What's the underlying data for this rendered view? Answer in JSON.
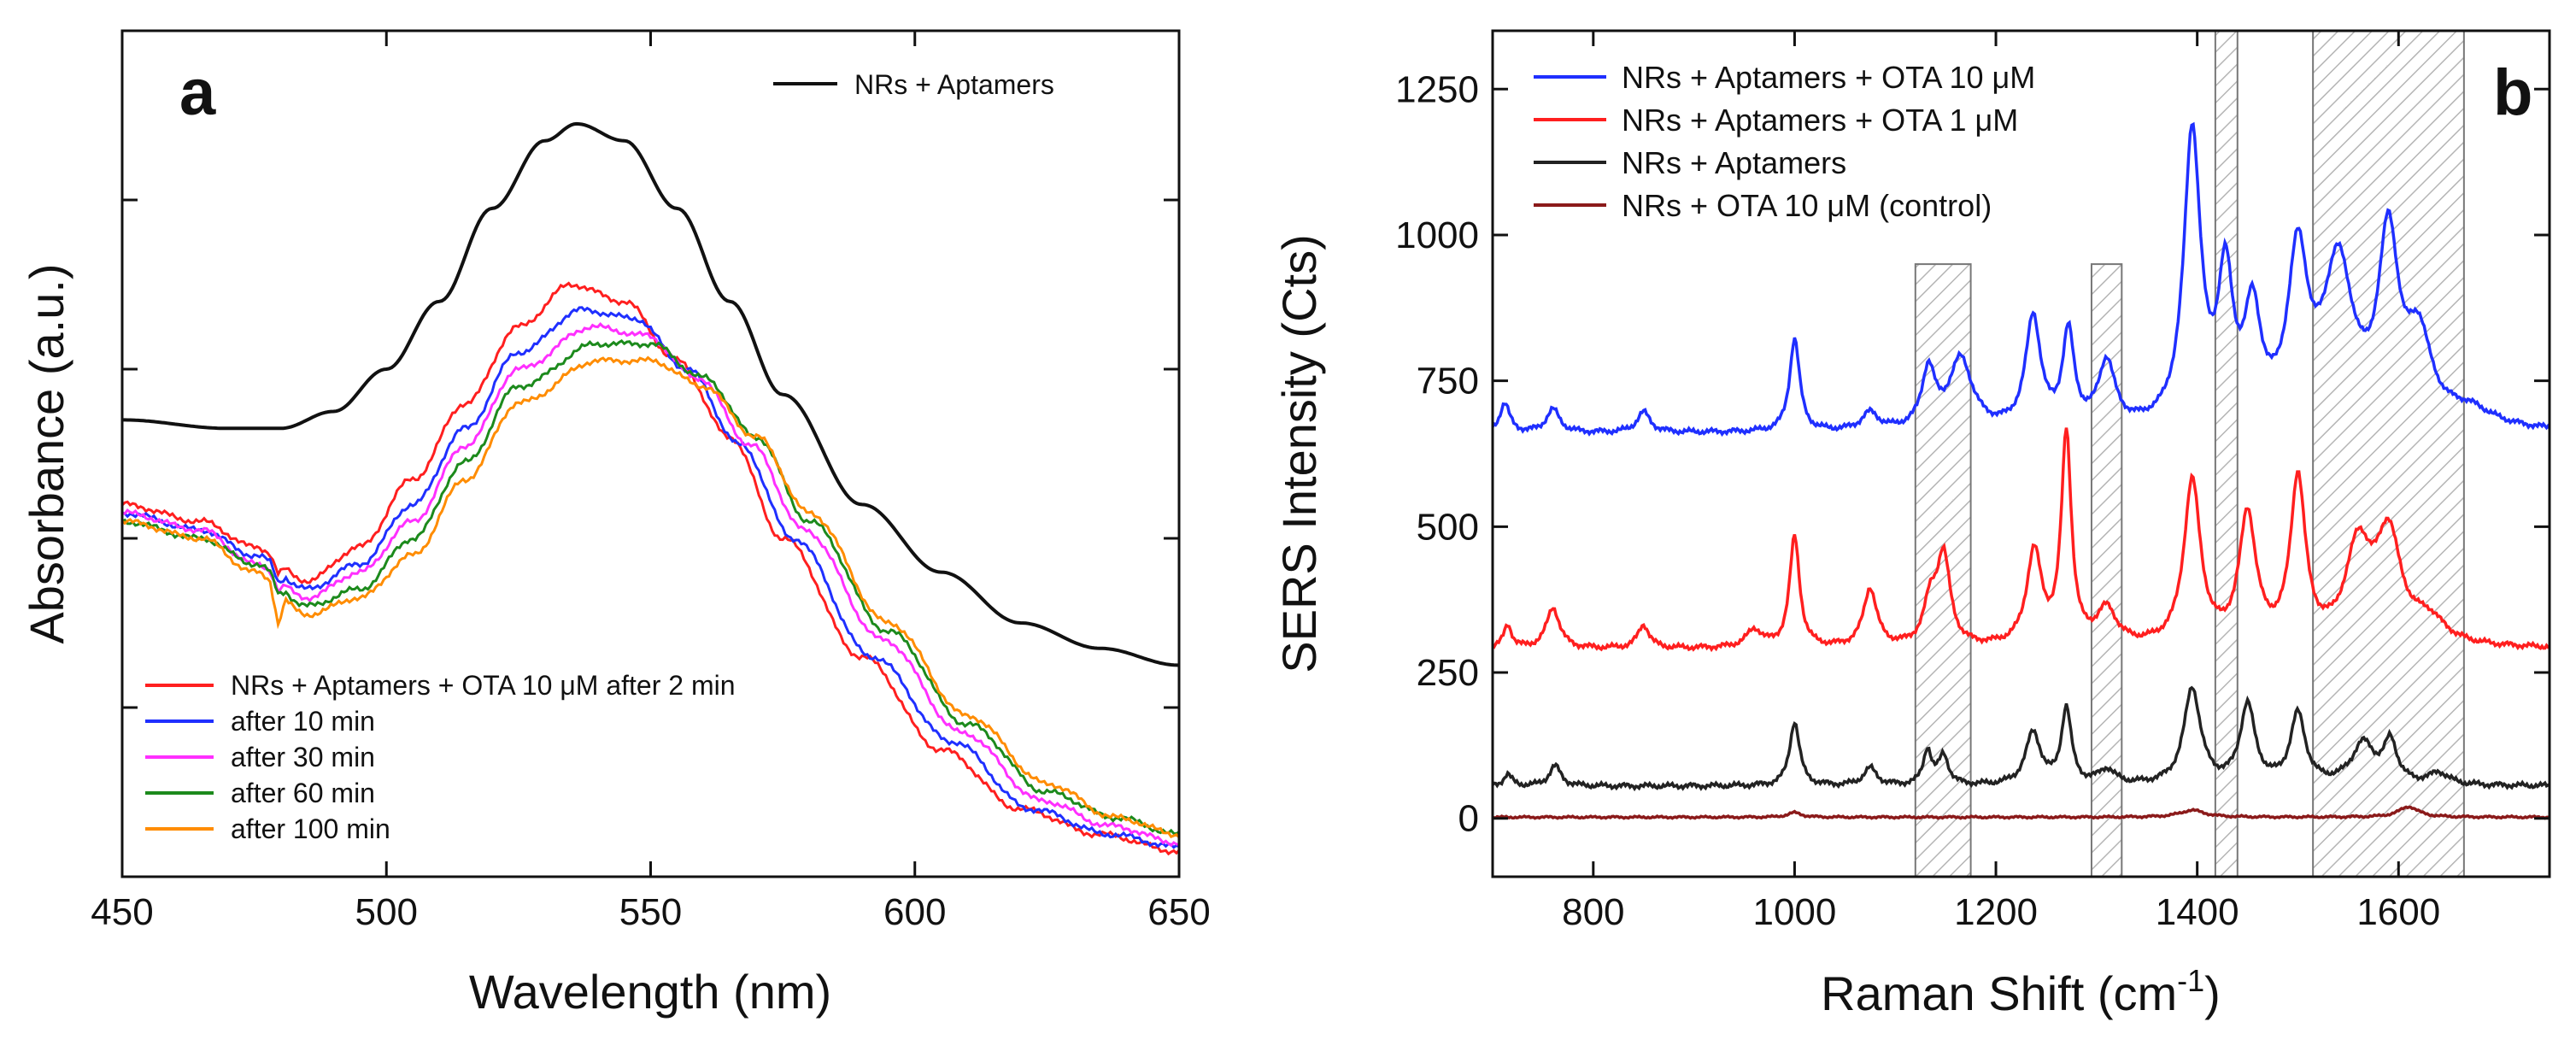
{
  "chart_data": [
    {
      "type": "line",
      "panel_label": "a",
      "xlabel": "Wavelength (nm)",
      "ylabel": "Absorbance (a.u.)",
      "xlim": [
        450,
        650
      ],
      "ylim": [
        0,
        1.0
      ],
      "x_ticks": [
        450,
        500,
        550,
        600,
        650
      ],
      "y_tick_labels_shown": false,
      "top_legend": "NRs + Aptamers",
      "legend_position": "bottom-left",
      "series": [
        {
          "name": "NRs + Aptamers",
          "color": "#111111",
          "x": [
            450,
            470,
            480,
            490,
            500,
            510,
            520,
            530,
            536,
            545,
            555,
            565,
            575,
            590,
            605,
            620,
            635,
            650
          ],
          "y": [
            0.54,
            0.53,
            0.53,
            0.55,
            0.6,
            0.68,
            0.79,
            0.87,
            0.89,
            0.87,
            0.79,
            0.68,
            0.57,
            0.44,
            0.36,
            0.3,
            0.27,
            0.25
          ]
        },
        {
          "name": "NRs + Aptamers + OTA 10 μM  after 2 min",
          "color": "#ff1f1f",
          "x": [
            450,
            465,
            475,
            485,
            495,
            505,
            515,
            525,
            535,
            545,
            555,
            565,
            575,
            590,
            605,
            620,
            635,
            650
          ],
          "y": [
            0.44,
            0.42,
            0.39,
            0.35,
            0.39,
            0.47,
            0.56,
            0.65,
            0.7,
            0.68,
            0.61,
            0.52,
            0.4,
            0.26,
            0.15,
            0.08,
            0.05,
            0.03
          ]
        },
        {
          "name": "after 10 min",
          "color": "#1f2fff",
          "x": [
            450,
            465,
            475,
            485,
            495,
            505,
            515,
            525,
            537,
            547,
            557,
            567,
            577,
            592,
            607,
            622,
            637,
            650
          ],
          "y": [
            0.43,
            0.41,
            0.38,
            0.34,
            0.37,
            0.44,
            0.53,
            0.62,
            0.67,
            0.66,
            0.6,
            0.51,
            0.4,
            0.26,
            0.16,
            0.08,
            0.05,
            0.035
          ]
        },
        {
          "name": "after 30 min",
          "color": "#ff2fff",
          "x": [
            450,
            465,
            475,
            485,
            495,
            505,
            515,
            525,
            539,
            549,
            559,
            569,
            579,
            594,
            609,
            624,
            637,
            650
          ],
          "y": [
            0.43,
            0.41,
            0.37,
            0.33,
            0.36,
            0.42,
            0.51,
            0.6,
            0.65,
            0.64,
            0.59,
            0.51,
            0.41,
            0.28,
            0.17,
            0.09,
            0.06,
            0.04
          ]
        },
        {
          "name": "after 60 min",
          "color": "#1c8a1c",
          "x": [
            450,
            465,
            475,
            485,
            495,
            505,
            515,
            525,
            540,
            550,
            560,
            570,
            580,
            595,
            610,
            625,
            638,
            650
          ],
          "y": [
            0.42,
            0.4,
            0.37,
            0.32,
            0.34,
            0.4,
            0.49,
            0.58,
            0.63,
            0.63,
            0.59,
            0.52,
            0.42,
            0.29,
            0.18,
            0.1,
            0.07,
            0.05
          ]
        },
        {
          "name": "after 100 min",
          "color": "#ff8c00",
          "x": [
            450,
            465,
            475,
            485,
            495,
            505,
            515,
            525,
            540,
            550,
            560,
            570,
            580,
            595,
            610,
            625,
            638,
            650
          ],
          "y": [
            0.42,
            0.4,
            0.36,
            0.31,
            0.33,
            0.38,
            0.47,
            0.56,
            0.61,
            0.61,
            0.58,
            0.52,
            0.43,
            0.3,
            0.19,
            0.11,
            0.07,
            0.05
          ]
        }
      ]
    },
    {
      "type": "line",
      "panel_label": "b",
      "xlabel": "Raman Shift (cm",
      "xlabel_sup": "-1",
      "xlabel_end": ")",
      "ylabel": "SERS Intensity (Cts)",
      "xlim": [
        700,
        1750
      ],
      "ylim": [
        -100,
        1350
      ],
      "x_ticks": [
        800,
        1000,
        1200,
        1400,
        1600
      ],
      "y_ticks": [
        0,
        250,
        500,
        750,
        1000,
        1250
      ],
      "legend_position": "top-left",
      "shaded_regions": [
        [
          1120,
          1175
        ],
        [
          1295,
          1325
        ],
        [
          1418,
          1440
        ],
        [
          1515,
          1665
        ]
      ],
      "series": [
        {
          "name": "NRs + Aptamers + OTA 10 μM",
          "color": "#1f2fff",
          "baseline": 660,
          "peaks": [
            [
              712,
              50,
              6
            ],
            [
              760,
              40,
              8
            ],
            [
              850,
              35,
              8
            ],
            [
              1000,
              160,
              6
            ],
            [
              1075,
              30,
              10
            ],
            [
              1133,
              100,
              8
            ],
            [
              1165,
              120,
              14
            ],
            [
              1237,
              190,
              9
            ],
            [
              1272,
              160,
              7
            ],
            [
              1310,
              110,
              10
            ],
            [
              1395,
              500,
              10
            ],
            [
              1428,
              240,
              9
            ],
            [
              1455,
              180,
              10
            ],
            [
              1500,
              280,
              12
            ],
            [
              1540,
              270,
              18
            ],
            [
              1590,
              310,
              12
            ],
            [
              1620,
              140,
              15
            ],
            [
              1670,
              30,
              30
            ]
          ]
        },
        {
          "name": "NRs + Aptamers + OTA 1   μM",
          "color": "#ff1f1f",
          "baseline": 290,
          "peaks": [
            [
              715,
              40,
              5
            ],
            [
              760,
              70,
              8
            ],
            [
              850,
              40,
              7
            ],
            [
              960,
              30,
              10
            ],
            [
              1000,
              190,
              6
            ],
            [
              1075,
              100,
              8
            ],
            [
              1135,
              70,
              8
            ],
            [
              1148,
              150,
              8
            ],
            [
              1238,
              160,
              9
            ],
            [
              1270,
              360,
              6
            ],
            [
              1310,
              60,
              12
            ],
            [
              1395,
              280,
              10
            ],
            [
              1450,
              220,
              10
            ],
            [
              1500,
              280,
              9
            ],
            [
              1560,
              160,
              15
            ],
            [
              1590,
              180,
              15
            ],
            [
              1630,
              40,
              20
            ]
          ]
        },
        {
          "name": "NRs + Aptamers",
          "color": "#222222",
          "baseline": 55,
          "peaks": [
            [
              715,
              20,
              5
            ],
            [
              762,
              35,
              7
            ],
            [
              1000,
              110,
              6
            ],
            [
              1075,
              30,
              8
            ],
            [
              1132,
              60,
              5
            ],
            [
              1148,
              50,
              6
            ],
            [
              1237,
              90,
              9
            ],
            [
              1270,
              130,
              6
            ],
            [
              1310,
              25,
              10
            ],
            [
              1395,
              165,
              10
            ],
            [
              1450,
              135,
              9
            ],
            [
              1500,
              120,
              9
            ],
            [
              1565,
              70,
              14
            ],
            [
              1592,
              70,
              8
            ],
            [
              1640,
              20,
              12
            ]
          ]
        },
        {
          "name": "NRs + OTA 10 μM (control)",
          "color": "#8b1a1a",
          "baseline": 2,
          "peaks": [
            [
              1000,
              8,
              8
            ],
            [
              1395,
              12,
              15
            ],
            [
              1610,
              18,
              12
            ]
          ]
        }
      ]
    }
  ]
}
